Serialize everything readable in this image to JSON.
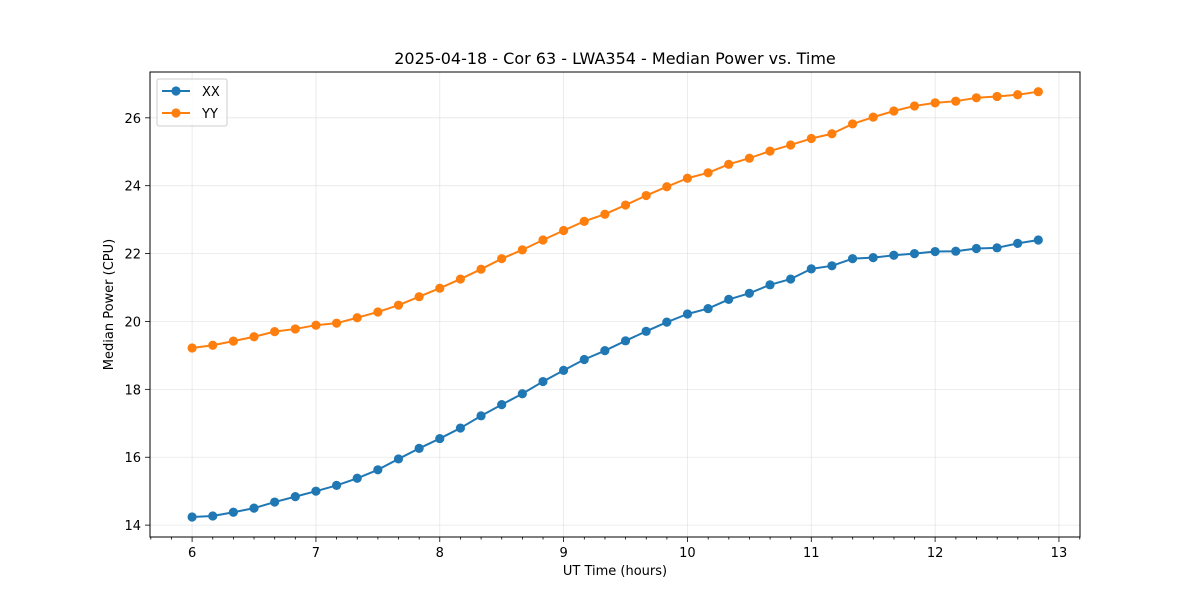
{
  "chart_data": {
    "type": "line",
    "title": "2025-04-18 - Cor 63 - LWA354 - Median Power vs. Time",
    "xlabel": "UT Time (hours)",
    "ylabel": "Median Power (CPU)",
    "xlim": [
      5.66,
      13.17
    ],
    "ylim": [
      13.65,
      27.35
    ],
    "x_ticks": [
      6,
      7,
      8,
      9,
      10,
      11,
      12,
      13
    ],
    "y_ticks": [
      14,
      16,
      18,
      20,
      22,
      24,
      26
    ],
    "x_minor_step": 0.1667,
    "grid": true,
    "legend_position": "upper-left",
    "x": [
      6.0,
      6.1667,
      6.3333,
      6.5,
      6.6667,
      6.8333,
      7.0,
      7.1667,
      7.3333,
      7.5,
      7.6667,
      7.8333,
      8.0,
      8.1667,
      8.3333,
      8.5,
      8.6667,
      8.8333,
      9.0,
      9.1667,
      9.3333,
      9.5,
      9.6667,
      9.8333,
      10.0,
      10.1667,
      10.3333,
      10.5,
      10.6667,
      10.8333,
      11.0,
      11.1667,
      11.3333,
      11.5,
      11.6667,
      11.8333,
      12.0,
      12.1667,
      12.3333,
      12.5,
      12.6667,
      12.8333
    ],
    "series": [
      {
        "name": "XX",
        "color": "#1f77b4",
        "values": [
          14.24,
          14.27,
          14.38,
          14.5,
          14.68,
          14.84,
          15.0,
          15.17,
          15.38,
          15.63,
          15.95,
          16.26,
          16.55,
          16.86,
          17.22,
          17.55,
          17.87,
          18.23,
          18.56,
          18.88,
          19.14,
          19.43,
          19.71,
          19.98,
          20.22,
          20.38,
          20.65,
          20.83,
          21.08,
          21.25,
          21.55,
          21.64,
          21.85,
          21.88,
          21.95,
          22.0,
          22.06,
          22.07,
          22.15,
          22.17,
          22.3,
          22.4
        ]
      },
      {
        "name": "YY",
        "color": "#ff7f0e",
        "values": [
          19.22,
          19.3,
          19.42,
          19.55,
          19.7,
          19.78,
          19.89,
          19.95,
          20.11,
          20.28,
          20.48,
          20.73,
          20.98,
          21.25,
          21.54,
          21.85,
          22.11,
          22.4,
          22.68,
          22.95,
          23.16,
          23.43,
          23.71,
          23.97,
          24.22,
          24.38,
          24.63,
          24.81,
          25.02,
          25.2,
          25.39,
          25.53,
          25.82,
          26.02,
          26.2,
          26.35,
          26.44,
          26.49,
          26.59,
          26.63,
          26.68,
          26.77
        ]
      }
    ]
  }
}
